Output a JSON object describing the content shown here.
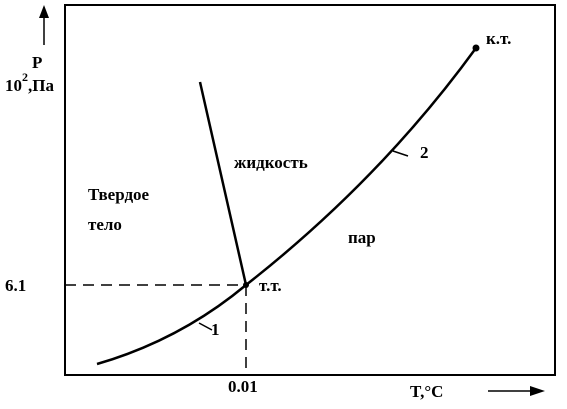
{
  "axes": {
    "y_label": "P",
    "y_unit_base": "10",
    "y_unit_exp": "2",
    "y_unit_rest": ",Па",
    "x_label": "T,°C",
    "y_mark": "6.1",
    "x_mark": "0.01"
  },
  "points": {
    "critical": "к.т.",
    "triple": "т.т."
  },
  "curves": {
    "sublimation": "1",
    "vaporization": "2"
  },
  "regions": {
    "liquid": "жидкость",
    "solid_line1": "Твердое",
    "solid_line2": "тело",
    "vapor": "пар"
  }
}
